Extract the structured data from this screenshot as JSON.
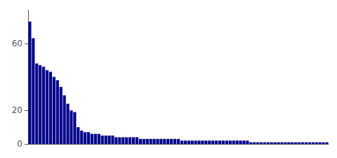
{
  "chart_data": {
    "type": "bar",
    "values": [
      73,
      63,
      48,
      47,
      46,
      44,
      43,
      40,
      38,
      34,
      29,
      24,
      20,
      19,
      10,
      8,
      7,
      7,
      6,
      6,
      6,
      5,
      5,
      5,
      5,
      4,
      4,
      4,
      4,
      4,
      4,
      4,
      3,
      3,
      3,
      3,
      3,
      3,
      3,
      3,
      3,
      3,
      3,
      3,
      2,
      2,
      2,
      2,
      2,
      2,
      2,
      2,
      2,
      2,
      2,
      2,
      2,
      2,
      2,
      2,
      2,
      2,
      2,
      2,
      1,
      1,
      1,
      1,
      1,
      1,
      1,
      1,
      1,
      1,
      1,
      1,
      1,
      1,
      1,
      1,
      1,
      1,
      1,
      1,
      1,
      1,
      1
    ],
    "color": "#00008B",
    "ylim": [
      0,
      80
    ],
    "yticks": [
      0,
      20,
      60
    ],
    "grid": false,
    "tick_labels": "y"
  }
}
